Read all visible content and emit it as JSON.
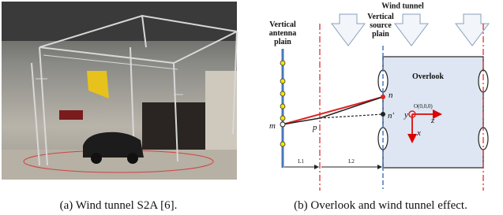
{
  "subfigure_a": {
    "caption": "(a) Wind tunnel S2A [6]."
  },
  "subfigure_b": {
    "caption": "(b) Overlook and wind tunnel effect.",
    "wind_tunnel": "Wind tunnel",
    "antenna_plain": [
      "Vertical",
      "antenna",
      "plain"
    ],
    "source_plain": [
      "Vertical",
      "source",
      "plain"
    ],
    "overlook": "Overlook",
    "points": {
      "n": "n",
      "n_prime": "n'",
      "m": "m",
      "p": "p",
      "origin": "O(0,0,0)"
    },
    "axes": {
      "y": "y",
      "z": "z",
      "x": "x"
    },
    "distances": {
      "l1": "L1",
      "l2": "L2"
    }
  }
}
